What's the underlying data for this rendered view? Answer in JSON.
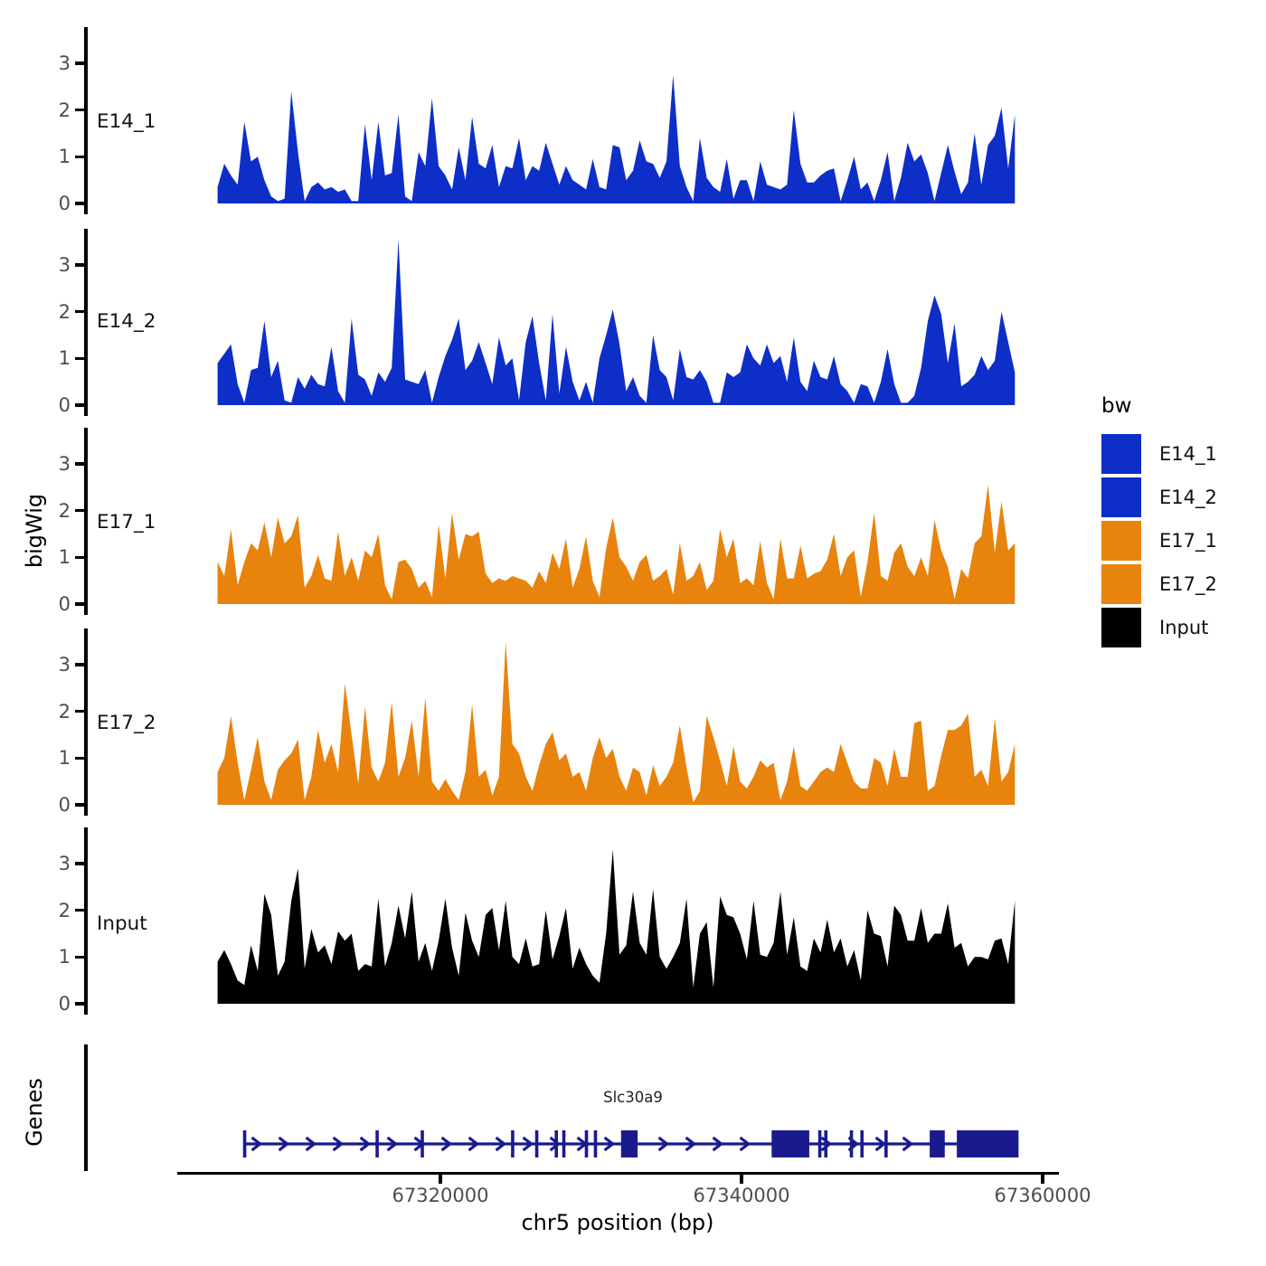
{
  "figure": {
    "ylab": "bigWig",
    "genes_lab": "Genes",
    "xlab": "chr5 position (bp)"
  },
  "colors": {
    "blue": "#0E2EC8",
    "orange": "#E8830D",
    "black": "#000000",
    "gene": "#1A1A8F",
    "tick_label": "#4d4d4d",
    "axis": "#000000"
  },
  "chart_data": {
    "type": "area",
    "title": "",
    "xlabel": "chr5 position (bp)",
    "ylabel": "bigWig",
    "facet_labels": [
      "E14_1",
      "E14_2",
      "E17_1",
      "E17_2",
      "Input",
      "Genes"
    ],
    "x_axis": {
      "ticks": [
        67320000,
        67340000,
        67360000
      ],
      "tick_labels": [
        "67320000",
        "67340000",
        "67360000"
      ],
      "range": [
        67302500,
        67361100
      ]
    },
    "y_axis": {
      "ticks": [
        0,
        1,
        2,
        3
      ],
      "tick_labels": [
        "0",
        "1",
        "2",
        "3"
      ],
      "range": [
        0,
        3.6
      ]
    },
    "x_start_bp": 67305200,
    "x_step_bp": 445,
    "legend": {
      "title": "bw",
      "entries": [
        {
          "label": "E14_1",
          "color": "#0E2EC8"
        },
        {
          "label": "E14_2",
          "color": "#0E2EC8"
        },
        {
          "label": "E17_1",
          "color": "#E8830D"
        },
        {
          "label": "E17_2",
          "color": "#E8830D"
        },
        {
          "label": "Input",
          "color": "#000000"
        }
      ]
    },
    "series": [
      {
        "name": "E14_1",
        "color": "#0E2EC8",
        "values": [
          0.35,
          0.85,
          0.6,
          0.4,
          1.75,
          0.9,
          1.0,
          0.5,
          0.15,
          0.05,
          0.1,
          2.4,
          1.1,
          0.05,
          0.35,
          0.45,
          0.3,
          0.35,
          0.25,
          0.3,
          0.05,
          0.05,
          1.7,
          0.5,
          1.75,
          0.6,
          0.65,
          1.9,
          0.15,
          0.05,
          1.1,
          0.8,
          2.25,
          0.8,
          0.6,
          0.3,
          1.2,
          0.5,
          1.85,
          0.85,
          0.75,
          1.25,
          0.35,
          0.8,
          0.75,
          1.4,
          0.5,
          0.8,
          0.7,
          1.3,
          0.85,
          0.4,
          0.8,
          0.5,
          0.4,
          0.3,
          0.95,
          0.35,
          0.3,
          1.25,
          1.2,
          0.5,
          0.7,
          1.35,
          0.9,
          0.85,
          0.55,
          0.9,
          2.75,
          0.8,
          0.35,
          0.05,
          1.4,
          0.55,
          0.35,
          0.25,
          0.95,
          0.1,
          0.5,
          0.5,
          0.05,
          0.9,
          0.4,
          0.35,
          0.3,
          0.4,
          2.0,
          0.85,
          0.45,
          0.45,
          0.6,
          0.7,
          0.75,
          0.05,
          0.5,
          1.0,
          0.3,
          0.45,
          0.05,
          0.5,
          1.1,
          0.05,
          0.55,
          1.3,
          0.9,
          1.05,
          0.65,
          0.05,
          0.65,
          1.25,
          0.68,
          0.2,
          0.45,
          1.5,
          0.4,
          1.25,
          1.45,
          2.05,
          0.75,
          1.9
        ]
      },
      {
        "name": "E14_2",
        "color": "#0E2EC8",
        "values": [
          0.9,
          1.1,
          1.3,
          0.45,
          0.05,
          0.75,
          0.8,
          1.8,
          0.6,
          0.95,
          0.1,
          0.05,
          0.6,
          0.35,
          0.65,
          0.45,
          0.4,
          1.25,
          0.3,
          0.05,
          1.85,
          0.65,
          0.55,
          0.2,
          0.7,
          0.5,
          0.8,
          3.55,
          0.55,
          0.5,
          0.45,
          0.75,
          0.05,
          0.6,
          1.05,
          1.4,
          1.85,
          0.75,
          0.95,
          1.35,
          0.9,
          0.45,
          1.45,
          0.85,
          1.0,
          0.1,
          1.35,
          1.9,
          0.9,
          0.1,
          1.95,
          0.25,
          1.25,
          0.5,
          0.1,
          0.5,
          0.05,
          1.0,
          1.5,
          2.05,
          1.3,
          0.3,
          0.6,
          0.2,
          0.05,
          1.5,
          0.75,
          0.6,
          0.1,
          1.2,
          0.6,
          0.55,
          0.75,
          0.5,
          0.05,
          0.05,
          0.7,
          0.6,
          0.7,
          1.3,
          1.0,
          0.85,
          1.3,
          0.9,
          1.05,
          0.5,
          1.45,
          0.5,
          0.3,
          0.95,
          0.6,
          0.55,
          1.05,
          0.45,
          0.3,
          0.05,
          0.45,
          0.4,
          0.05,
          0.5,
          1.2,
          0.45,
          0.05,
          0.05,
          0.2,
          0.8,
          1.8,
          2.35,
          1.95,
          0.9,
          1.75,
          0.4,
          0.5,
          0.65,
          1.05,
          0.75,
          0.95,
          2.0,
          1.35,
          0.7
        ]
      },
      {
        "name": "E17_1",
        "color": "#E8830D",
        "values": [
          0.9,
          0.6,
          1.6,
          0.4,
          0.9,
          1.3,
          1.15,
          1.75,
          1.0,
          1.85,
          1.3,
          1.45,
          1.9,
          0.35,
          0.6,
          1.05,
          0.55,
          0.5,
          1.55,
          0.6,
          1.0,
          0.5,
          1.15,
          1.0,
          1.5,
          0.4,
          0.1,
          0.9,
          0.95,
          0.75,
          0.35,
          0.5,
          0.15,
          1.7,
          0.55,
          1.95,
          0.95,
          1.5,
          1.45,
          1.55,
          0.65,
          0.45,
          0.55,
          0.5,
          0.6,
          0.55,
          0.5,
          0.35,
          0.7,
          0.45,
          1.1,
          0.75,
          1.4,
          0.35,
          0.75,
          1.45,
          0.5,
          0.15,
          1.2,
          1.85,
          1.0,
          0.8,
          0.5,
          0.9,
          1.05,
          0.5,
          0.6,
          0.75,
          0.2,
          1.3,
          0.5,
          0.6,
          0.9,
          0.3,
          0.5,
          1.6,
          1.0,
          1.4,
          0.45,
          0.55,
          0.4,
          1.35,
          0.45,
          0.1,
          1.4,
          0.55,
          0.55,
          1.25,
          0.55,
          0.65,
          0.7,
          0.95,
          1.5,
          0.6,
          1.0,
          1.15,
          0.15,
          0.9,
          1.95,
          0.6,
          0.5,
          1.1,
          1.3,
          0.8,
          0.6,
          1.0,
          0.6,
          1.8,
          1.15,
          0.8,
          0.1,
          0.75,
          0.55,
          1.3,
          1.45,
          2.55,
          1.1,
          2.2,
          1.15,
          1.3
        ]
      },
      {
        "name": "E17_2",
        "color": "#E8830D",
        "values": [
          0.7,
          1.0,
          1.9,
          0.9,
          0.1,
          0.75,
          1.45,
          0.5,
          0.1,
          0.75,
          0.95,
          1.1,
          1.4,
          0.1,
          0.6,
          1.6,
          0.9,
          1.3,
          0.7,
          2.6,
          1.5,
          0.45,
          2.1,
          0.8,
          0.5,
          0.9,
          2.2,
          0.6,
          1.0,
          1.8,
          0.6,
          2.3,
          0.5,
          0.3,
          0.55,
          0.3,
          0.1,
          0.7,
          2.15,
          0.6,
          0.75,
          0.2,
          0.6,
          3.5,
          1.3,
          1.1,
          0.6,
          0.3,
          0.85,
          1.3,
          1.55,
          0.95,
          1.1,
          0.6,
          0.7,
          0.3,
          1.0,
          1.45,
          1.0,
          1.2,
          0.6,
          0.3,
          0.8,
          0.7,
          0.2,
          0.85,
          0.4,
          0.6,
          0.9,
          1.7,
          0.8,
          0.05,
          0.3,
          1.9,
          1.45,
          0.95,
          0.4,
          1.25,
          0.5,
          0.35,
          0.6,
          0.95,
          0.8,
          0.9,
          0.1,
          0.5,
          1.25,
          0.4,
          0.3,
          0.5,
          0.7,
          0.8,
          0.7,
          1.3,
          0.9,
          0.5,
          0.35,
          0.35,
          1.0,
          0.9,
          0.4,
          1.2,
          0.6,
          0.6,
          1.75,
          1.8,
          0.3,
          0.4,
          1.05,
          1.6,
          1.6,
          1.7,
          1.95,
          0.6,
          0.75,
          0.4,
          1.85,
          0.5,
          0.7,
          1.3
        ]
      },
      {
        "name": "Input",
        "color": "#000000",
        "values": [
          0.9,
          1.15,
          0.85,
          0.5,
          0.4,
          1.25,
          0.7,
          2.35,
          1.9,
          0.6,
          0.9,
          2.2,
          2.9,
          0.75,
          1.6,
          1.1,
          1.25,
          0.85,
          1.55,
          1.35,
          1.5,
          0.7,
          0.85,
          0.8,
          2.25,
          0.8,
          1.3,
          2.1,
          1.4,
          2.4,
          0.9,
          1.3,
          0.7,
          1.35,
          2.25,
          1.2,
          0.6,
          1.95,
          1.35,
          1.0,
          1.9,
          2.05,
          1.15,
          2.2,
          1.0,
          0.85,
          1.4,
          0.8,
          0.85,
          2.0,
          0.95,
          1.45,
          2.05,
          0.75,
          1.2,
          0.85,
          0.6,
          0.45,
          1.5,
          3.3,
          1.05,
          1.25,
          2.4,
          1.3,
          1.05,
          2.45,
          1.0,
          0.75,
          1.0,
          1.3,
          2.25,
          0.35,
          1.5,
          1.75,
          0.35,
          2.3,
          1.9,
          1.85,
          1.5,
          0.95,
          2.2,
          1.05,
          1.0,
          1.3,
          2.4,
          1.05,
          1.85,
          0.8,
          0.7,
          1.4,
          1.1,
          1.8,
          1.1,
          1.4,
          0.8,
          1.15,
          0.5,
          2.0,
          1.5,
          1.45,
          0.8,
          2.1,
          1.9,
          1.35,
          1.35,
          2.05,
          1.3,
          1.5,
          1.5,
          2.15,
          1.2,
          1.3,
          0.8,
          1.0,
          1.0,
          0.95,
          1.35,
          1.4,
          0.85,
          2.2
        ]
      }
    ],
    "gene_track": {
      "label": "Slc30a9",
      "strand": "+",
      "color": "#1A1A8F",
      "start": 67307000,
      "end": 67358400,
      "exon_ticks": [
        67307000,
        67315800,
        67318800,
        67324800,
        67326400,
        67327700,
        67328200,
        67329700,
        67330300,
        67345200,
        67345600,
        67347300,
        67348000,
        67349600
      ],
      "exon_boxes": [
        [
          67332000,
          67333100
        ],
        [
          67342000,
          67344500
        ],
        [
          67352500,
          67353500
        ],
        [
          67354300,
          67358400
        ]
      ]
    }
  }
}
